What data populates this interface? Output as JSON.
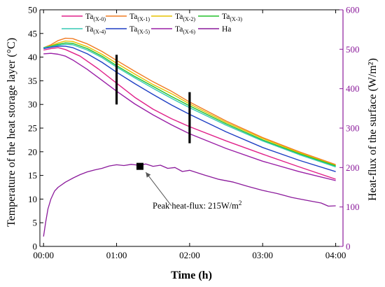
{
  "chart_data": {
    "type": "line",
    "title": "",
    "xlabel": "Time (h)",
    "ylabel_left": "Temperature of the heat storage layer (°C)",
    "ylabel_right": "Heat-flux of the surface (W/m²)",
    "ylim_left": [
      0,
      50
    ],
    "ylim_right": [
      0,
      600
    ],
    "xlim_hours": [
      -0.05,
      4.1
    ],
    "x_ticks": [
      {
        "value": 0,
        "label": "00:00"
      },
      {
        "value": 1,
        "label": "01:00"
      },
      {
        "value": 2,
        "label": "02:00"
      },
      {
        "value": 3,
        "label": "03:00"
      },
      {
        "value": 4,
        "label": "04:00"
      }
    ],
    "y_ticks_left": [
      0,
      5,
      10,
      15,
      20,
      25,
      30,
      35,
      40,
      45,
      50
    ],
    "y_ticks_right": [
      0,
      100,
      200,
      300,
      400,
      500,
      600
    ],
    "grid": false,
    "legend_position": "top-left",
    "colors": {
      "right_axis": "#8b1a9b"
    },
    "series": [
      {
        "name": "Ta",
        "sub": "(X-0)",
        "color": "#e0218a",
        "axis": "left",
        "x": [
          0,
          0.1,
          0.2,
          0.3,
          0.5,
          0.75,
          1.0,
          1.25,
          1.5,
          1.75,
          2.0,
          2.5,
          3.0,
          3.5,
          4.0
        ],
        "y": [
          41.5,
          41.8,
          42.0,
          41.6,
          40.2,
          37.5,
          34.5,
          31.5,
          29.0,
          27.0,
          25.3,
          22.3,
          19.5,
          16.8,
          14.2
        ]
      },
      {
        "name": "Ta",
        "sub": "(X-1)",
        "color": "#f07b22",
        "axis": "left",
        "x": [
          0,
          0.1,
          0.2,
          0.3,
          0.4,
          0.6,
          0.8,
          1.0,
          1.25,
          1.5,
          1.75,
          2.0,
          2.5,
          3.0,
          3.5,
          4.0
        ],
        "y": [
          42.0,
          42.6,
          43.5,
          44.0,
          43.9,
          42.8,
          41.2,
          39.3,
          37.0,
          34.8,
          32.8,
          30.5,
          26.5,
          23.0,
          20.0,
          17.3
        ]
      },
      {
        "name": "Ta",
        "sub": "(X-2)",
        "color": "#e6c200",
        "axis": "left",
        "x": [
          0,
          0.1,
          0.2,
          0.3,
          0.4,
          0.6,
          0.8,
          1.0,
          1.25,
          1.5,
          1.75,
          2.0,
          2.5,
          3.0,
          3.5,
          4.0
        ],
        "y": [
          42.0,
          42.4,
          43.0,
          43.4,
          43.3,
          42.2,
          40.6,
          38.7,
          36.4,
          34.2,
          32.3,
          30.1,
          26.2,
          22.8,
          19.8,
          17.1
        ]
      },
      {
        "name": "Ta",
        "sub": "(X-3)",
        "color": "#22c02a",
        "axis": "left",
        "x": [
          0,
          0.1,
          0.2,
          0.3,
          0.4,
          0.6,
          0.8,
          1.0,
          1.25,
          1.5,
          1.75,
          2.0,
          2.5,
          3.0,
          3.5,
          4.0
        ],
        "y": [
          42.0,
          42.3,
          42.7,
          43.0,
          42.9,
          41.8,
          40.2,
          38.2,
          35.9,
          33.8,
          31.7,
          29.7,
          25.9,
          22.5,
          19.6,
          17.0
        ]
      },
      {
        "name": "Ta",
        "sub": "(X-4)",
        "color": "#35c9b4",
        "axis": "left",
        "x": [
          0,
          0.1,
          0.2,
          0.3,
          0.4,
          0.6,
          0.8,
          1.0,
          1.25,
          1.5,
          1.75,
          2.0,
          2.5,
          3.0,
          3.5,
          4.0
        ],
        "y": [
          42.0,
          42.2,
          42.5,
          42.7,
          42.6,
          41.5,
          39.9,
          37.9,
          35.6,
          33.4,
          31.3,
          29.3,
          25.6,
          22.3,
          19.4,
          16.8
        ]
      },
      {
        "name": "Ta",
        "sub": "(X-5)",
        "color": "#1f3fc4",
        "axis": "left",
        "x": [
          0,
          0.1,
          0.2,
          0.3,
          0.4,
          0.6,
          0.8,
          1.0,
          1.25,
          1.5,
          1.75,
          2.0,
          2.5,
          3.0,
          3.5,
          4.0
        ],
        "y": [
          41.8,
          42.1,
          42.3,
          42.3,
          42.0,
          40.7,
          38.9,
          36.8,
          34.4,
          32.1,
          29.9,
          27.9,
          24.2,
          20.9,
          18.2,
          15.8
        ]
      },
      {
        "name": "Ta",
        "sub": "(X-6)",
        "color": "#9a1fa6",
        "axis": "left",
        "x": [
          0,
          0.1,
          0.2,
          0.3,
          0.4,
          0.6,
          0.8,
          1.0,
          1.25,
          1.5,
          1.75,
          2.0,
          2.5,
          3.0,
          3.5,
          4.0
        ],
        "y": [
          40.7,
          40.8,
          40.6,
          40.2,
          39.4,
          37.4,
          35.1,
          32.8,
          30.1,
          27.8,
          25.7,
          23.8,
          20.7,
          18.0,
          15.8,
          13.9
        ]
      },
      {
        "name": "Ha",
        "sub": "",
        "color": "#8b1a9b",
        "axis": "right",
        "x": [
          0,
          0.03,
          0.06,
          0.1,
          0.15,
          0.2,
          0.3,
          0.4,
          0.5,
          0.6,
          0.7,
          0.8,
          0.9,
          1.0,
          1.1,
          1.2,
          1.3,
          1.4,
          1.5,
          1.6,
          1.7,
          1.8,
          1.9,
          2.0,
          2.2,
          2.4,
          2.6,
          2.8,
          3.0,
          3.2,
          3.4,
          3.6,
          3.8,
          3.9,
          4.0
        ],
        "y": [
          25,
          62,
          95,
          120,
          140,
          150,
          163,
          173,
          182,
          189,
          194,
          198,
          204,
          207,
          205,
          208,
          206,
          209,
          203,
          206,
          198,
          200,
          190,
          193,
          181,
          170,
          163,
          152,
          142,
          134,
          124,
          117,
          110,
          102,
          103
        ]
      }
    ],
    "markers": {
      "vertical_bars": [
        {
          "x": 1.0,
          "y_from": 30,
          "y_to": 40.5
        },
        {
          "x": 2.0,
          "y_from": 21.8,
          "y_to": 32.6
        }
      ],
      "peak_point": {
        "x": 1.32,
        "y": 203,
        "axis": "right"
      }
    },
    "annotation": {
      "text": "Peak heat-flux: 215W/m",
      "superscript": "2",
      "arrow_from": {
        "x": 1.75,
        "y": 103
      },
      "arrow_to": {
        "x": 1.4,
        "y": 188
      }
    }
  }
}
